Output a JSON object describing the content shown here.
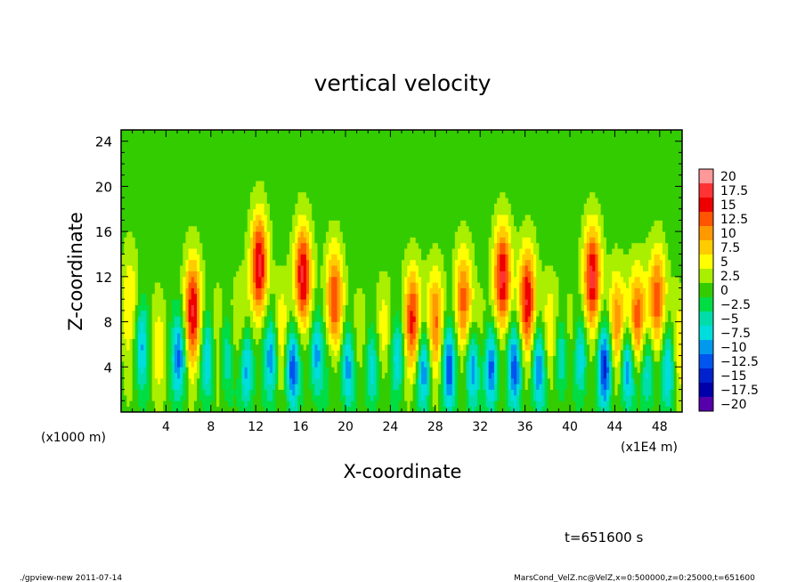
{
  "chart_data": {
    "type": "heatmap",
    "title": "vertical velocity",
    "xlabel": "X-coordinate",
    "ylabel": "Z-coordinate",
    "xunit_left": "(x1000 m)",
    "xunit_right": "(x1E4 m)",
    "xlim": [
      0,
      50
    ],
    "ylim": [
      0,
      25
    ],
    "xticks": [
      4,
      8,
      12,
      16,
      20,
      24,
      28,
      32,
      36,
      40,
      44,
      48
    ],
    "yticks": [
      4,
      8,
      12,
      16,
      20,
      24
    ],
    "colorbar": {
      "labels": [
        "20",
        "17.5",
        "15",
        "12.5",
        "10",
        "7.5",
        "5",
        "2.5",
        "0",
        "−2.5",
        "−5",
        "−7.5",
        "−10",
        "−12.5",
        "−15",
        "−17.5",
        "−20"
      ],
      "values": [
        20,
        17.5,
        15,
        12.5,
        10,
        7.5,
        5,
        2.5,
        0,
        -2.5,
        -5,
        -7.5,
        -10,
        -12.5,
        -15,
        -17.5,
        -20
      ],
      "colors": [
        "#ff9999",
        "#ff3333",
        "#ee0000",
        "#ff5500",
        "#ff9900",
        "#ffcc00",
        "#ffff00",
        "#aaee00",
        "#33cc00",
        "#00dd44",
        "#00ddaa",
        "#00dddd",
        "#0099ee",
        "#0055ee",
        "#0022cc",
        "#0000aa",
        "#5500aa"
      ]
    },
    "updrafts": [
      {
        "x": 0.8,
        "z": 10,
        "amp": 6
      },
      {
        "x": 3.3,
        "z": 6,
        "amp": 4
      },
      {
        "x": 6.4,
        "z": 9,
        "amp": 16
      },
      {
        "x": 8.5,
        "z": 6,
        "amp": 5
      },
      {
        "x": 10.5,
        "z": 7,
        "amp": 6
      },
      {
        "x": 12.3,
        "z": 13,
        "amp": 17
      },
      {
        "x": 14.3,
        "z": 7,
        "amp": 6
      },
      {
        "x": 16.2,
        "z": 12,
        "amp": 17
      },
      {
        "x": 19.0,
        "z": 10,
        "amp": 14
      },
      {
        "x": 21.2,
        "z": 6,
        "amp": 5
      },
      {
        "x": 23.5,
        "z": 7,
        "amp": 6
      },
      {
        "x": 26.0,
        "z": 8,
        "amp": 15
      },
      {
        "x": 28.0,
        "z": 8,
        "amp": 11
      },
      {
        "x": 30.5,
        "z": 10,
        "amp": 12
      },
      {
        "x": 32.0,
        "z": 6,
        "amp": 5
      },
      {
        "x": 34.0,
        "z": 12,
        "amp": 17
      },
      {
        "x": 36.2,
        "z": 10,
        "amp": 16
      },
      {
        "x": 38.2,
        "z": 7,
        "amp": 7
      },
      {
        "x": 40.0,
        "z": 6,
        "amp": 5
      },
      {
        "x": 42.0,
        "z": 12,
        "amp": 17
      },
      {
        "x": 44.2,
        "z": 8,
        "amp": 10
      },
      {
        "x": 46.0,
        "z": 8,
        "amp": 14
      },
      {
        "x": 47.8,
        "z": 10,
        "amp": 13
      },
      {
        "x": 49.6,
        "z": 6,
        "amp": 5
      }
    ],
    "downdrafts": [
      {
        "x": 1.8,
        "z": 6,
        "amp": -8
      },
      {
        "x": 5.2,
        "z": 5,
        "amp": -11
      },
      {
        "x": 7.8,
        "z": 5,
        "amp": -9
      },
      {
        "x": 9.3,
        "z": 5,
        "amp": -8
      },
      {
        "x": 11.2,
        "z": 4,
        "amp": -12
      },
      {
        "x": 13.4,
        "z": 5,
        "amp": -10
      },
      {
        "x": 15.2,
        "z": 4,
        "amp": -13
      },
      {
        "x": 17.4,
        "z": 5,
        "amp": -11
      },
      {
        "x": 20.2,
        "z": 4,
        "amp": -12
      },
      {
        "x": 22.4,
        "z": 4,
        "amp": -10
      },
      {
        "x": 24.7,
        "z": 5,
        "amp": -9
      },
      {
        "x": 27.0,
        "z": 4,
        "amp": -11
      },
      {
        "x": 29.2,
        "z": 4,
        "amp": -12
      },
      {
        "x": 31.3,
        "z": 4,
        "amp": -13
      },
      {
        "x": 33.0,
        "z": 4,
        "amp": -14
      },
      {
        "x": 35.1,
        "z": 4,
        "amp": -12
      },
      {
        "x": 37.2,
        "z": 4,
        "amp": -11
      },
      {
        "x": 39.2,
        "z": 5,
        "amp": -10
      },
      {
        "x": 41.0,
        "z": 5,
        "amp": -9
      },
      {
        "x": 43.1,
        "z": 4,
        "amp": -14
      },
      {
        "x": 45.1,
        "z": 4,
        "amp": -12
      },
      {
        "x": 46.9,
        "z": 4,
        "amp": -10
      },
      {
        "x": 48.8,
        "z": 4,
        "amp": -9
      }
    ]
  },
  "time_label": "t=651600 s",
  "footer": {
    "left": "./gpview-new 2011-07-14",
    "right": "MarsCond_VelZ.nc@VelZ,x=0:500000,z=0:25000,t=651600"
  }
}
